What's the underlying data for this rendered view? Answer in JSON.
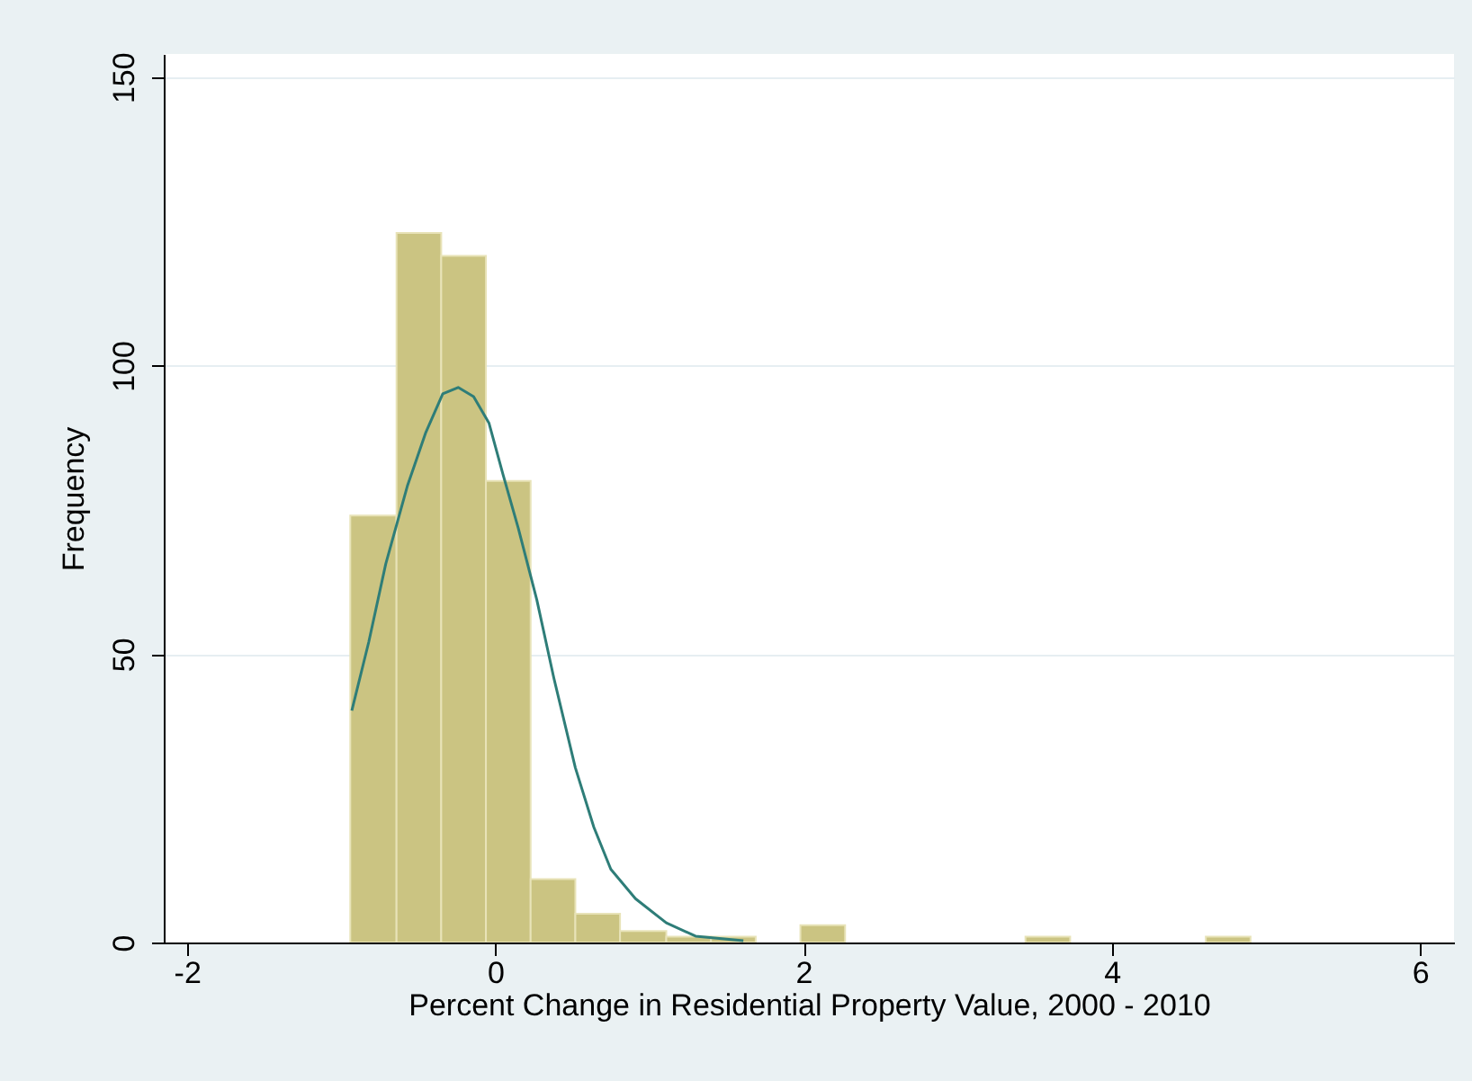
{
  "chart_data": {
    "type": "histogram",
    "xlabel": "Percent Change in Residential Property Value, 2000 - 2010",
    "ylabel": "Frequency",
    "bins": [
      -0.94,
      -0.64,
      -0.35,
      -0.06,
      0.23,
      0.52,
      0.81,
      1.11,
      1.4,
      1.69,
      1.98,
      2.27,
      3.44,
      3.73,
      4.61,
      4.9
    ],
    "values": [
      74,
      123,
      119,
      80,
      11,
      5,
      2,
      1,
      1,
      0,
      3,
      0,
      1,
      0,
      1
    ],
    "color": "#cbc482",
    "series": [
      {
        "type": "line",
        "color": "#2e7d78",
        "x": [
          -0.93,
          -0.82,
          -0.71,
          -0.57,
          -0.45,
          -0.34,
          -0.24,
          -0.14,
          -0.04,
          0.05,
          0.15,
          0.27,
          0.38,
          0.52,
          0.64,
          0.75,
          0.91,
          1.11,
          1.3,
          1.61
        ],
        "values": [
          40.2,
          52.1,
          65.6,
          79.1,
          88.4,
          95.1,
          96.2,
          94.6,
          90.0,
          81.2,
          71.8,
          59.4,
          45.9,
          30.3,
          20.0,
          12.7,
          7.6,
          3.4,
          1.1,
          0.3
        ]
      }
    ],
    "xlim": [
      -2.15,
      6.22
    ],
    "xticks": [
      -2,
      0,
      2,
      4,
      6
    ],
    "ylim": [
      0,
      154
    ],
    "yticks": [
      0,
      50,
      100,
      150
    ],
    "grid": "y"
  }
}
